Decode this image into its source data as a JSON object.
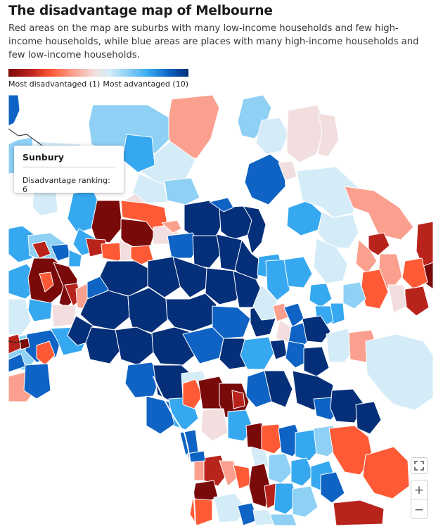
{
  "header": {
    "title": "The disadvantage map of Melbourne",
    "subtitle": "Red areas on the map are suburbs with many low-income households and few high-income households, while blue areas are places with many high-income households and few low-income households."
  },
  "legend": {
    "min_label": "Most disadvantaged (1)",
    "max_label": "Most advantaged (10)",
    "min_value": 1,
    "max_value": 10
  },
  "colors": {
    "1": "#7a0a0a",
    "2": "#b8231c",
    "3": "#ff5a36",
    "4": "#fba08f",
    "5": "#f2dede",
    "6": "#d4ecf7",
    "7": "#8fd0f5",
    "8": "#36a8f0",
    "9": "#0e63c4",
    "10": "#052f78"
  },
  "tooltip": {
    "suburb": "Sunbury",
    "label": "Disadvantage ranking: 6",
    "ranking": 6
  },
  "controls": {
    "fullscreen_icon": "fullscreen-icon",
    "zoom_in": "+",
    "zoom_out": "−"
  }
}
